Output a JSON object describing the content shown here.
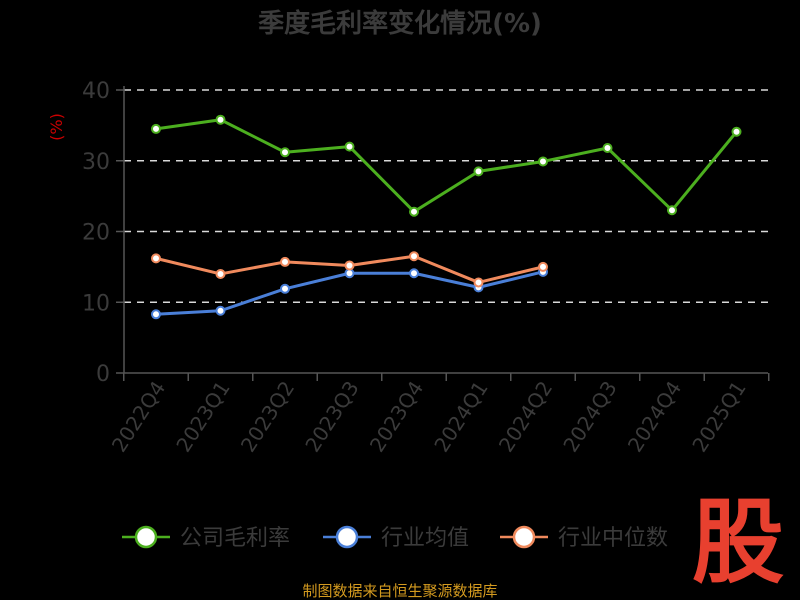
{
  "chart_data": {
    "type": "line",
    "title": "季度毛利率变化情况(%)",
    "unit_label": "(%)",
    "categories": [
      "2022Q4",
      "2023Q1",
      "2023Q2",
      "2023Q3",
      "2023Q4",
      "2024Q1",
      "2024Q2",
      "2024Q3",
      "2024Q4",
      "2025Q1"
    ],
    "ylim": [
      0,
      40
    ],
    "yticks": [
      0,
      10,
      20,
      30,
      40
    ],
    "grid": true,
    "legend_position": "bottom",
    "series": [
      {
        "name": "公司毛利率",
        "color": "#4caf1f",
        "values": [
          34.5,
          35.8,
          31.2,
          32.0,
          22.8,
          28.5,
          29.9,
          31.8,
          23.0,
          34.1
        ]
      },
      {
        "name": "行业均值",
        "color": "#4a7fd8",
        "values": [
          8.3,
          8.8,
          11.9,
          14.1,
          14.1,
          12.1,
          14.3,
          null,
          null,
          null
        ]
      },
      {
        "name": "行业中位数",
        "color": "#f08a5d",
        "values": [
          16.2,
          14.0,
          15.7,
          15.2,
          16.5,
          12.8,
          15.0,
          null,
          null,
          null
        ]
      }
    ]
  },
  "footer": {
    "source": "制图数据来自恒生聚源数据库"
  },
  "watermark": {
    "text": "股"
  }
}
